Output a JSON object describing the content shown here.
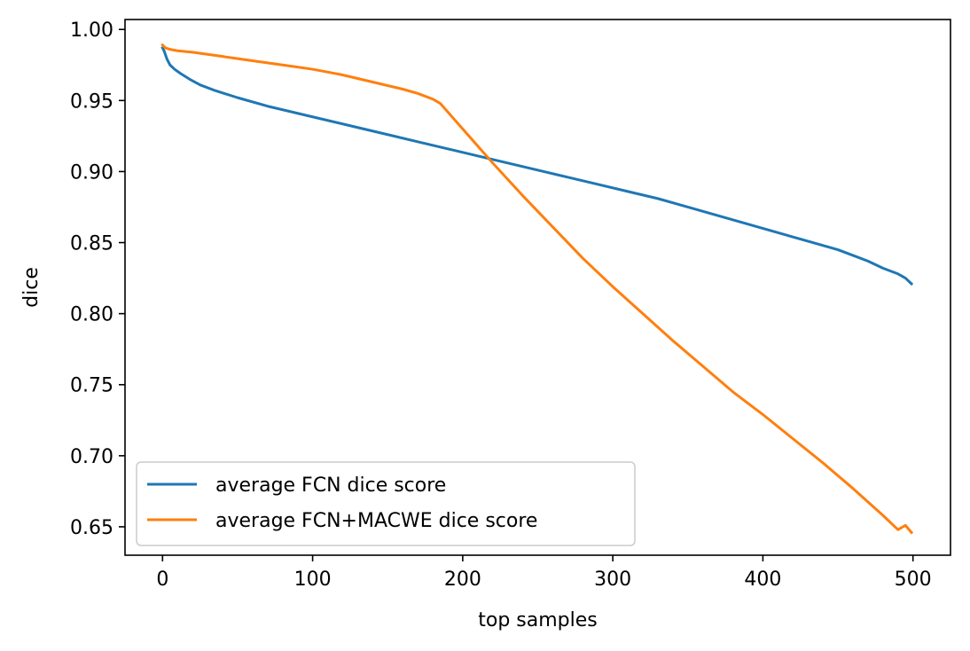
{
  "chart_data": {
    "type": "line",
    "title": "",
    "xlabel": "top samples",
    "ylabel": "dice",
    "xlim": [
      -25,
      525
    ],
    "ylim": [
      0.63,
      1.007
    ],
    "x_ticks": [
      0,
      100,
      200,
      300,
      400,
      500
    ],
    "y_ticks": [
      0.65,
      0.7,
      0.75,
      0.8,
      0.85,
      0.9,
      0.95,
      1.0
    ],
    "x_tick_labels": [
      "0",
      "100",
      "200",
      "300",
      "400",
      "500"
    ],
    "y_tick_labels": [
      "0.65",
      "0.70",
      "0.75",
      "0.80",
      "0.85",
      "0.90",
      "0.95",
      "1.00"
    ],
    "grid": false,
    "legend_position": "lower-left",
    "series": [
      {
        "name": "average FCN dice score",
        "color": "#1f77b4",
        "x": [
          0,
          1,
          2,
          3,
          5,
          8,
          12,
          18,
          25,
          35,
          50,
          70,
          90,
          110,
          130,
          150,
          170,
          190,
          210,
          230,
          250,
          270,
          290,
          310,
          330,
          350,
          370,
          390,
          410,
          430,
          450,
          460,
          470,
          480,
          490,
          495,
          499
        ],
        "y": [
          0.987,
          0.985,
          0.982,
          0.979,
          0.975,
          0.972,
          0.969,
          0.965,
          0.961,
          0.957,
          0.952,
          0.946,
          0.941,
          0.936,
          0.931,
          0.926,
          0.921,
          0.916,
          0.911,
          0.906,
          0.901,
          0.896,
          0.891,
          0.886,
          0.881,
          0.875,
          0.869,
          0.863,
          0.857,
          0.851,
          0.845,
          0.841,
          0.837,
          0.832,
          0.828,
          0.825,
          0.821
        ]
      },
      {
        "name": "average FCN+MACWE dice score",
        "color": "#ff7f0e",
        "x": [
          0,
          2,
          5,
          10,
          20,
          40,
          60,
          80,
          100,
          120,
          140,
          160,
          170,
          180,
          185,
          190,
          200,
          210,
          220,
          240,
          260,
          280,
          300,
          320,
          340,
          360,
          380,
          400,
          420,
          440,
          460,
          480,
          490,
          495,
          499
        ],
        "y": [
          0.989,
          0.987,
          0.986,
          0.985,
          0.984,
          0.981,
          0.978,
          0.975,
          0.972,
          0.968,
          0.963,
          0.958,
          0.955,
          0.951,
          0.948,
          0.942,
          0.93,
          0.918,
          0.906,
          0.883,
          0.861,
          0.839,
          0.819,
          0.8,
          0.781,
          0.763,
          0.745,
          0.729,
          0.712,
          0.695,
          0.677,
          0.658,
          0.648,
          0.651,
          0.646
        ]
      }
    ]
  }
}
